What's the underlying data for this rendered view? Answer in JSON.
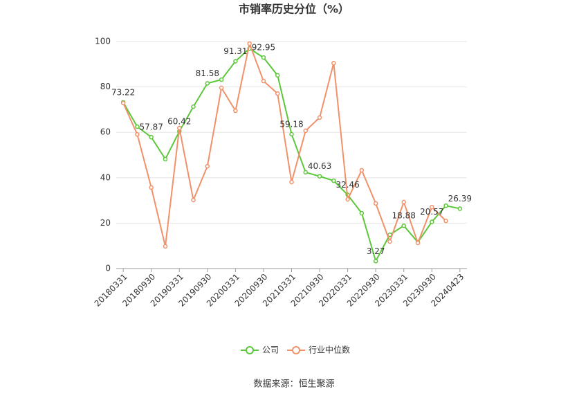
{
  "chart_data": {
    "type": "line",
    "title": "市销率历史分位（%）",
    "source": "数据来源：恒生聚源",
    "categories": [
      "20180331",
      null,
      "20180930",
      null,
      "20190331",
      null,
      "20190930",
      null,
      "20200331",
      null,
      "20200930",
      null,
      "20210331",
      null,
      "20210930",
      null,
      "20220331",
      null,
      "20220930",
      null,
      "20230331",
      null,
      "20230930",
      null,
      "20240423"
    ],
    "series": [
      {
        "name": "公司",
        "color": "#5cc73a",
        "values": [
          73.22,
          62.5,
          57.87,
          48.2,
          60.42,
          71.3,
          81.58,
          83.2,
          91.31,
          96.9,
          92.95,
          85.1,
          59.18,
          42.4,
          40.63,
          38.7,
          32.46,
          24.4,
          3.27,
          14.9,
          18.88,
          11.6,
          20.57,
          27.7,
          26.39
        ],
        "value_labels": [
          "73.22",
          null,
          "57.87",
          null,
          "60.42",
          null,
          "81.58",
          null,
          "91.31",
          null,
          "92.95",
          null,
          "59.18",
          null,
          "40.63",
          null,
          "32.46",
          null,
          "3.27",
          null,
          "18.88",
          null,
          "20.57",
          null,
          "26.39"
        ]
      },
      {
        "name": "行业中位数",
        "color": "#f0916a",
        "values": [
          72.9,
          59.1,
          35.7,
          9.8,
          61.9,
          30.2,
          45.1,
          79.6,
          69.5,
          99.1,
          82.6,
          77.1,
          38.1,
          60.7,
          66.5,
          90.5,
          30.5,
          43.3,
          28.7,
          11.9,
          29.3,
          11.3,
          27.1,
          21.0,
          null
        ]
      }
    ],
    "ylim": [
      0,
      100
    ],
    "yticks": [
      0,
      20,
      40,
      60,
      80,
      100
    ],
    "grid": true
  }
}
